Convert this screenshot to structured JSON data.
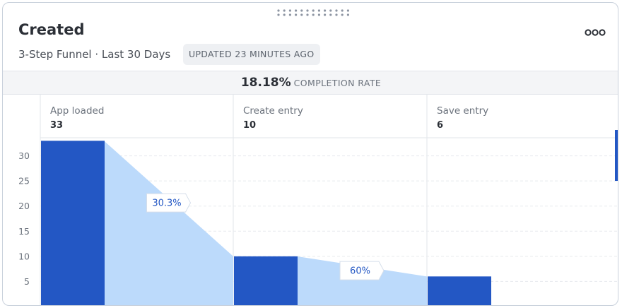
{
  "header": {
    "title": "Created",
    "subtitle": "3-Step Funnel · Last 30 Days",
    "updated": "UPDATED 23 MINUTES AGO"
  },
  "completion": {
    "value": "18.18%",
    "label": "COMPLETION RATE"
  },
  "icons": {
    "drag": "drag-handle-icon",
    "more": "more-options-icon"
  },
  "colors": {
    "bar": "#2357c4",
    "fill": "#bcdafb",
    "label_text": "#2357c4"
  },
  "chart_data": {
    "type": "bar",
    "categories": [
      "App loaded",
      "Create entry",
      "Save entry"
    ],
    "values": [
      33,
      10,
      6
    ],
    "value_labels": [
      "33",
      "10",
      "6"
    ],
    "conversions": [
      "30.3%",
      "60%"
    ],
    "y_ticks": [
      "5",
      "10",
      "15",
      "20",
      "25",
      "30"
    ],
    "ylim": [
      0,
      33.6
    ],
    "grid": true
  }
}
